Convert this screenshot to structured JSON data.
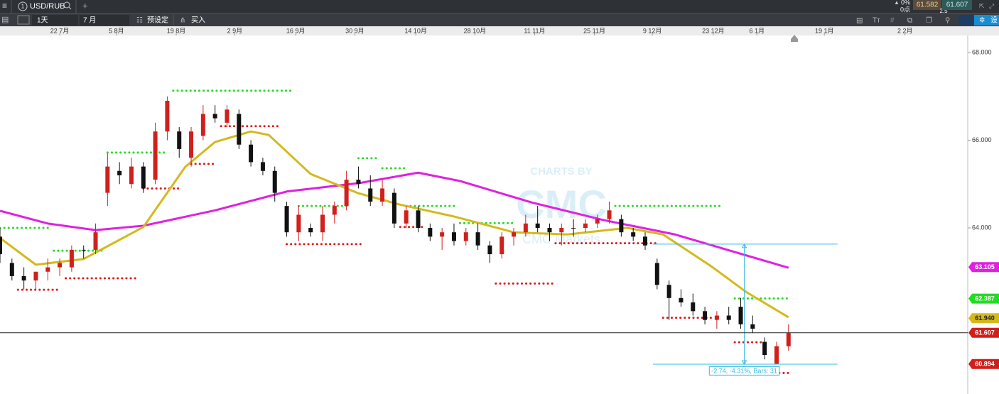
{
  "toolbar": {
    "tab_number": "1",
    "symbol": "USD/RUB",
    "change": "0%",
    "points": "0点",
    "sell": "61.582",
    "buy": "61.607",
    "spread": "2.5",
    "interval": "1天",
    "range": "7 月",
    "preset": "预设定",
    "buy_button": "买入",
    "settings": "设"
  },
  "chart_data": {
    "type": "candlestick",
    "x": [
      0,
      2,
      4,
      6,
      8,
      10,
      12,
      14,
      16,
      18,
      20,
      22,
      24,
      26,
      28,
      30,
      32,
      34,
      36,
      38,
      40,
      42,
      44,
      46,
      48,
      50,
      52,
      54,
      56,
      58,
      60,
      62,
      64,
      66,
      68,
      70,
      72,
      74,
      76,
      78,
      80,
      82,
      84,
      86,
      88,
      90,
      92,
      94,
      96,
      98,
      100,
      102,
      104,
      106,
      108,
      110,
      112,
      114,
      116,
      118,
      120,
      122,
      124,
      126,
      128,
      130,
      132
    ],
    "open": [
      63.8,
      63.2,
      62.9,
      62.8,
      63.0,
      63.1,
      63.1,
      63.5,
      63.5,
      64.8,
      65.3,
      65.0,
      65.4,
      65.1,
      66.2,
      66.2,
      65.6,
      66.1,
      66.6,
      66.4,
      66.6,
      65.9,
      65.5,
      65.3,
      64.5,
      63.9,
      64.0,
      63.9,
      64.3,
      64.5,
      65.1,
      64.9,
      64.6,
      64.8,
      64.1,
      64.4,
      64.0,
      63.8,
      63.9,
      63.7,
      63.9,
      63.6,
      63.4,
      63.8,
      63.9,
      64.1,
      64.0,
      63.9,
      64.0,
      64.0,
      64.1,
      64.2,
      64.2,
      63.9,
      63.8,
      63.2,
      62.7,
      62.4,
      62.3,
      62.1,
      61.9,
      62.0,
      62.2,
      61.8,
      61.4,
      60.9,
      61.3
    ],
    "high": [
      64.0,
      63.3,
      63.1,
      63.0,
      63.3,
      63.3,
      63.6,
      63.6,
      64.1,
      65.7,
      65.5,
      65.6,
      65.5,
      66.4,
      67.0,
      66.3,
      66.3,
      66.8,
      66.8,
      66.8,
      66.7,
      66.0,
      65.6,
      65.4,
      64.6,
      64.5,
      64.1,
      64.5,
      64.6,
      65.3,
      65.4,
      65.2,
      65.1,
      64.9,
      64.5,
      64.5,
      64.1,
      64.0,
      64.1,
      64.0,
      64.1,
      63.7,
      63.9,
      64.0,
      64.3,
      64.5,
      64.1,
      64.1,
      64.2,
      64.2,
      64.3,
      64.6,
      64.3,
      64.0,
      63.9,
      63.3,
      62.8,
      62.6,
      62.5,
      62.2,
      62.1,
      62.2,
      62.4,
      62.0,
      61.5,
      61.4,
      61.8
    ],
    "low": [
      63.2,
      62.8,
      62.6,
      62.6,
      62.8,
      62.9,
      63.0,
      63.3,
      63.4,
      64.5,
      65.0,
      64.9,
      64.8,
      65.0,
      66.0,
      65.6,
      65.4,
      66.0,
      66.4,
      66.3,
      65.8,
      65.4,
      65.2,
      64.6,
      63.8,
      63.7,
      63.8,
      63.7,
      64.1,
      64.4,
      64.9,
      64.5,
      64.5,
      64.0,
      64.0,
      63.9,
      63.7,
      63.5,
      63.6,
      63.6,
      63.5,
      63.2,
      63.3,
      63.6,
      63.8,
      63.9,
      63.7,
      63.6,
      63.8,
      63.9,
      64.0,
      64.1,
      63.8,
      63.7,
      63.5,
      62.6,
      61.9,
      62.2,
      62.0,
      61.8,
      61.7,
      61.8,
      61.7,
      61.6,
      61.0,
      60.9,
      61.2
    ],
    "close": [
      63.4,
      62.9,
      62.8,
      63.0,
      63.1,
      63.2,
      63.5,
      63.5,
      63.9,
      65.4,
      65.2,
      65.4,
      64.9,
      66.2,
      66.9,
      65.8,
      66.2,
      66.6,
      66.5,
      66.7,
      65.9,
      65.5,
      65.3,
      64.8,
      63.9,
      64.3,
      63.9,
      64.3,
      64.5,
      65.1,
      65.0,
      64.6,
      64.9,
      64.1,
      64.4,
      64.0,
      63.8,
      63.9,
      63.7,
      63.9,
      63.6,
      63.4,
      63.8,
      63.9,
      64.1,
      64.0,
      63.9,
      64.0,
      64.0,
      64.1,
      64.2,
      64.4,
      63.9,
      63.8,
      63.6,
      62.7,
      62.4,
      62.3,
      62.1,
      61.9,
      62.0,
      61.9,
      61.8,
      61.7,
      61.1,
      61.3,
      61.6
    ],
    "up_color": "#d0201c",
    "down_color": "#111111",
    "lines": [
      {
        "color": "#e020e0",
        "x": [
          0,
          8,
          16,
          24,
          36,
          48,
          60,
          70,
          77,
          89,
          101,
          113,
          125,
          132
        ],
        "values": [
          64.39,
          64.1,
          63.95,
          64.05,
          64.4,
          64.83,
          65.02,
          65.26,
          65.07,
          64.58,
          64.18,
          63.85,
          63.37,
          63.09
        ]
      },
      {
        "color": "#d4b91c",
        "x": [
          0,
          6,
          14,
          24,
          31,
          36,
          42,
          45,
          52,
          60,
          67,
          76,
          86,
          95,
          105,
          111,
          119,
          125,
          132
        ],
        "values": [
          63.77,
          63.16,
          63.29,
          64.02,
          65.39,
          65.96,
          66.2,
          66.12,
          65.23,
          64.79,
          64.53,
          64.26,
          63.9,
          63.85,
          64.0,
          63.85,
          63.13,
          62.53,
          61.96
        ]
      }
    ],
    "levels": [
      {
        "color": "#22dd22",
        "value": 67.13,
        "from": 29,
        "to": 49
      },
      {
        "color": "#22dd22",
        "value": 65.72,
        "from": 18,
        "to": 28
      },
      {
        "color": "#22dd22",
        "value": 64.5,
        "from": 50,
        "to": 58
      },
      {
        "color": "#22dd22",
        "value": 64.5,
        "from": 68,
        "to": 76
      },
      {
        "color": "#22dd22",
        "value": 64.11,
        "from": 77,
        "to": 86
      },
      {
        "color": "#22dd22",
        "value": 64.5,
        "from": 103,
        "to": 121
      },
      {
        "color": "#22dd22",
        "value": 62.39,
        "from": 123,
        "to": 132
      },
      {
        "color": "#22dd22",
        "value": 63.48,
        "from": 9,
        "to": 17
      },
      {
        "color": "#22dd22",
        "value": 64.0,
        "from": 0,
        "to": 8
      },
      {
        "color": "#22dd22",
        "value": 65.59,
        "from": 60,
        "to": 63
      },
      {
        "color": "#22dd22",
        "value": 65.36,
        "from": 64,
        "to": 68
      },
      {
        "color": "#e01818",
        "value": 66.32,
        "from": 37,
        "to": 47
      },
      {
        "color": "#e01818",
        "value": 65.46,
        "from": 32,
        "to": 36
      },
      {
        "color": "#e01818",
        "value": 64.9,
        "from": 24,
        "to": 30
      },
      {
        "color": "#e01818",
        "value": 62.85,
        "from": 11,
        "to": 23
      },
      {
        "color": "#e01818",
        "value": 62.59,
        "from": 3,
        "to": 10
      },
      {
        "color": "#e01818",
        "value": 63.63,
        "from": 48,
        "to": 61
      },
      {
        "color": "#e01818",
        "value": 64.02,
        "from": 67,
        "to": 71
      },
      {
        "color": "#e01818",
        "value": 62.73,
        "from": 83,
        "to": 93
      },
      {
        "color": "#e01818",
        "value": 63.65,
        "from": 93,
        "to": 110
      },
      {
        "color": "#e01818",
        "value": 61.95,
        "from": 111,
        "to": 119
      },
      {
        "color": "#e01818",
        "value": 61.39,
        "from": 123,
        "to": 128
      },
      {
        "color": "#e01818",
        "value": 60.69,
        "from": 129,
        "to": 132
      }
    ],
    "price_labels": [
      {
        "value": 63.105,
        "label": "63.105",
        "color": "#e020e0",
        "text_color": "#ffffff"
      },
      {
        "value": 62.387,
        "label": "62.387",
        "color": "#22dd22",
        "text_color": "#ffffff"
      },
      {
        "value": 61.94,
        "label": "61.940",
        "color": "#d4b91c",
        "text_color": "#222222"
      },
      {
        "value": 61.607,
        "label": "61.607",
        "color": "#d0201c",
        "text_color": "#ffffff",
        "line": true
      },
      {
        "value": 60.894,
        "label": "60.894",
        "color": "#d0201c",
        "text_color": "#ffffff"
      }
    ],
    "measure": {
      "label": "-2.74, -4.31%, Bars:  31",
      "high": 63.63,
      "low": 60.89,
      "from": 109.3,
      "to": 140.2,
      "at": 124.6,
      "color": "#3ab8e0"
    },
    "watermark": {
      "line1": "CHARTS BY",
      "logo": "CMC",
      "line2": "CMC Markets"
    },
    "xlim": [
      0,
      162
    ],
    "xticks": [
      {
        "value": 10,
        "label": "22 7月"
      },
      {
        "value": 19.5,
        "label": "5 8月"
      },
      {
        "value": 29.5,
        "label": "19 8月"
      },
      {
        "value": 39.3,
        "label": "2 9月"
      },
      {
        "value": 49.5,
        "label": "16 9月"
      },
      {
        "value": 59.4,
        "label": "30 9月"
      },
      {
        "value": 69.6,
        "label": "14 10月"
      },
      {
        "value": 79.5,
        "label": "28 10月"
      },
      {
        "value": 89.5,
        "label": "11 11月"
      },
      {
        "value": 99.5,
        "label": "25 11月"
      },
      {
        "value": 109.2,
        "label": "9 12月"
      },
      {
        "value": 119.4,
        "label": "23 12月"
      },
      {
        "value": 126.7,
        "label": "6 1月"
      },
      {
        "value": 138,
        "label": "19 1月"
      },
      {
        "value": 151.5,
        "label": "2 2月"
      }
    ],
    "ylim": [
      60.21,
      68.39
    ],
    "yticks": [
      {
        "value": 64,
        "label": "64.000"
      },
      {
        "value": 66,
        "label": "66.000"
      },
      {
        "value": 68,
        "label": "68.000"
      }
    ]
  }
}
